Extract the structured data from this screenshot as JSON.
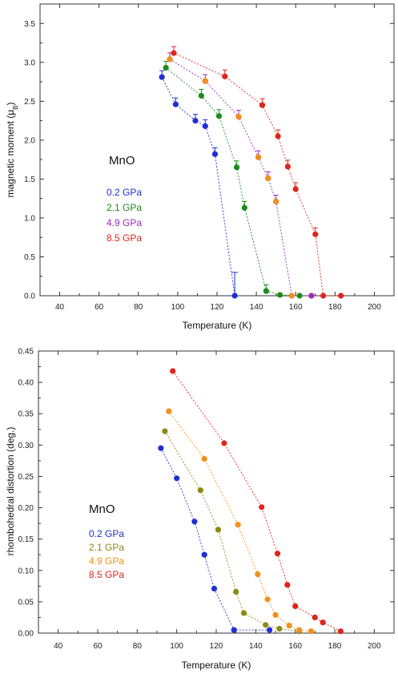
{
  "chart_data": [
    {
      "type": "line",
      "annotation": "MnO",
      "xlabel": "Temperature (K)",
      "ylabel": "magnetic moment (μB)",
      "ylabel_main": "magnetic moment (μ",
      "ylabel_sub": "B",
      "ylabel_end": ")",
      "xlim": [
        30,
        210
      ],
      "ylim": [
        0,
        3.75
      ],
      "xticks": [
        40,
        60,
        80,
        100,
        120,
        140,
        160,
        180,
        200
      ],
      "xtick_labels": [
        "40",
        "60",
        "80",
        "100",
        "120",
        "140",
        "160",
        "180",
        "200"
      ],
      "yticks": [
        0,
        0.5,
        1.0,
        1.5,
        2.0,
        2.5,
        3.0,
        3.5
      ],
      "ytick_labels": [
        "0.0",
        "0.5",
        "1.0",
        "1.5",
        "2.0",
        "2.5",
        "3.0",
        "3.5"
      ],
      "grid": false,
      "legend_position": "left-middle",
      "series": [
        {
          "name": "0.2 GPa",
          "color": "#1f2fd6",
          "x": [
            92,
            99,
            109,
            114,
            119,
            129
          ],
          "y": [
            2.81,
            2.46,
            2.25,
            2.18,
            1.82,
            0.0
          ]
        },
        {
          "name": "2.1 GPa",
          "color": "#1a8c1a",
          "x": [
            94,
            112,
            121,
            130,
            134,
            145,
            152,
            162
          ],
          "y": [
            2.93,
            2.57,
            2.31,
            1.65,
            1.13,
            0.06,
            0.01,
            0.0
          ]
        },
        {
          "name": "4.9 GPa",
          "color": "#9b2bb5",
          "x": [
            96,
            114,
            131,
            141,
            146,
            150,
            158,
            168
          ],
          "y": [
            3.04,
            2.76,
            2.3,
            1.78,
            1.51,
            1.21,
            0.0,
            0.0
          ]
        },
        {
          "name": "8.5 GPa",
          "color": "#e0251c",
          "x": [
            98,
            124,
            143,
            151,
            156,
            160,
            170,
            174,
            183
          ],
          "y": [
            3.12,
            2.82,
            2.45,
            2.05,
            1.66,
            1.37,
            0.79,
            0.0,
            0.0
          ]
        }
      ],
      "extra_points": [
        {
          "color": "#f39017",
          "x": [
            96,
            114,
            131,
            141,
            146,
            150,
            158
          ],
          "y": [
            3.04,
            2.76,
            2.3,
            1.78,
            1.51,
            1.21,
            0.0
          ]
        }
      ]
    },
    {
      "type": "line",
      "annotation": "MnO",
      "xlabel": "Temperature (K)",
      "ylabel": "rhombohedral distortion (deg.)",
      "xlim": [
        30,
        210
      ],
      "ylim": [
        0,
        0.45
      ],
      "xticks": [
        40,
        60,
        80,
        100,
        120,
        140,
        160,
        180,
        200
      ],
      "xtick_labels": [
        "40",
        "60",
        "80",
        "100",
        "120",
        "140",
        "160",
        "180",
        "200"
      ],
      "yticks": [
        0,
        0.05,
        0.1,
        0.15,
        0.2,
        0.25,
        0.3,
        0.35,
        0.4,
        0.45
      ],
      "ytick_labels": [
        "0.00",
        "0.05",
        "0.10",
        "0.15",
        "0.20",
        "0.25",
        "0.30",
        "0.35",
        "0.40",
        "0.45"
      ],
      "grid": false,
      "legend_position": "left-middle",
      "series": [
        {
          "name": "0.2 GPa",
          "color": "#1f2fd6",
          "x": [
            92,
            100,
            109,
            114,
            119,
            129,
            147
          ],
          "y": [
            0.295,
            0.247,
            0.178,
            0.125,
            0.071,
            0.005,
            0.005
          ]
        },
        {
          "name": "2.1 GPa",
          "color": "#8a8a14",
          "x": [
            94,
            112,
            121,
            130,
            134,
            145,
            152,
            162
          ],
          "y": [
            0.322,
            0.228,
            0.165,
            0.066,
            0.032,
            0.013,
            0.007,
            0.003
          ]
        },
        {
          "name": "4.9 GPa",
          "color": "#f39017",
          "x": [
            96,
            114,
            131,
            141,
            146,
            150,
            157,
            162,
            168
          ],
          "y": [
            0.354,
            0.278,
            0.173,
            0.094,
            0.054,
            0.029,
            0.012,
            0.005,
            0.003
          ]
        },
        {
          "name": "8.5 GPa",
          "color": "#e0251c",
          "x": [
            98,
            124,
            143,
            151,
            156,
            160,
            170,
            174,
            183
          ],
          "y": [
            0.418,
            0.303,
            0.201,
            0.127,
            0.077,
            0.043,
            0.025,
            0.017,
            0.003
          ]
        }
      ]
    }
  ]
}
